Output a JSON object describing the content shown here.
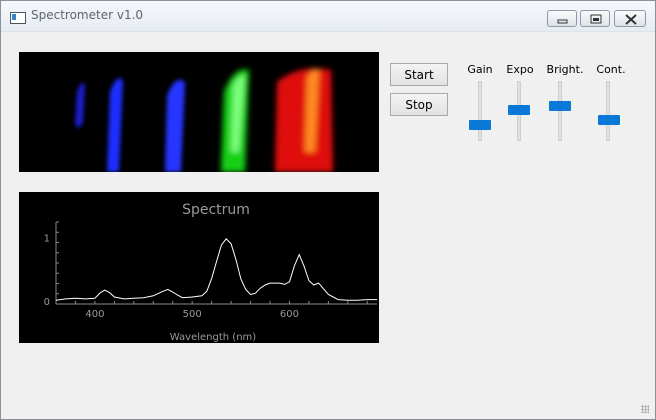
{
  "window": {
    "title": "Spectrometer v1.0"
  },
  "controls": {
    "start_label": "Start",
    "stop_label": "Stop"
  },
  "sliders": [
    {
      "label": "Gain",
      "value": 0.23
    },
    {
      "label": "Expo",
      "value": 0.52
    },
    {
      "label": "Bright.",
      "value": 0.61
    },
    {
      "label": "Cont.",
      "value": 0.32
    }
  ],
  "camera_preview": {
    "bands": [
      {
        "color": "#2020ff",
        "intensity": 0.55
      },
      {
        "color": "#3040ff",
        "intensity": 0.85
      },
      {
        "color": "#2a3cff",
        "intensity": 0.85
      },
      {
        "color": "#20e020",
        "intensity": 1.0
      },
      {
        "color": "#ff2010",
        "intensity": 1.0
      }
    ]
  },
  "chart_data": {
    "type": "line",
    "title": "Spectrum",
    "xlabel": "Wavelength (nm)",
    "ylabel": "",
    "xlim": [
      360,
      690
    ],
    "ylim": [
      -0.05,
      1.15
    ],
    "x_ticks": [
      400,
      500,
      600
    ],
    "y_ticks": [
      0,
      1
    ],
    "grid": false,
    "series": [
      {
        "color": "#ffffff",
        "x": [
          360,
          370,
          380,
          390,
          400,
          405,
          410,
          415,
          420,
          430,
          440,
          450,
          460,
          470,
          475,
          480,
          485,
          490,
          500,
          510,
          515,
          520,
          525,
          530,
          535,
          540,
          545,
          550,
          555,
          560,
          565,
          570,
          575,
          580,
          590,
          595,
          600,
          605,
          610,
          615,
          620,
          625,
          630,
          640,
          650,
          660,
          670,
          680,
          690
        ],
        "y": [
          0.01,
          0.03,
          0.04,
          0.03,
          0.04,
          0.12,
          0.17,
          0.13,
          0.06,
          0.03,
          0.04,
          0.05,
          0.08,
          0.15,
          0.18,
          0.14,
          0.09,
          0.05,
          0.06,
          0.08,
          0.15,
          0.35,
          0.62,
          0.88,
          0.98,
          0.9,
          0.65,
          0.35,
          0.18,
          0.1,
          0.12,
          0.2,
          0.25,
          0.28,
          0.28,
          0.26,
          0.3,
          0.55,
          0.73,
          0.55,
          0.32,
          0.25,
          0.28,
          0.1,
          0.02,
          0.01,
          0.01,
          0.02,
          0.02
        ]
      }
    ]
  }
}
